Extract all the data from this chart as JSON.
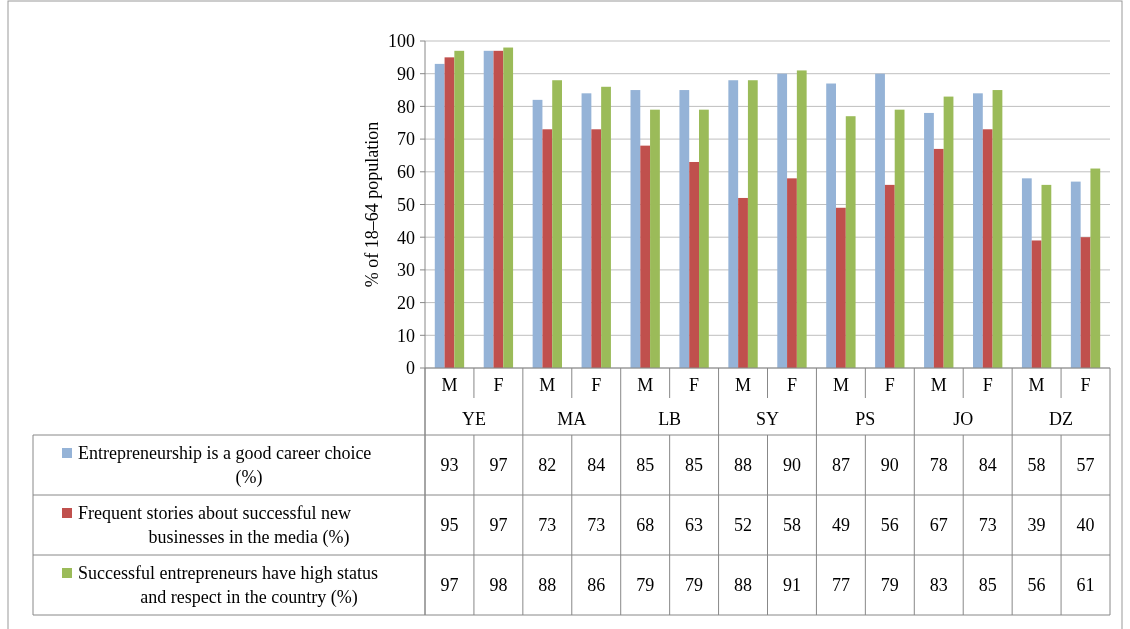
{
  "chart_data": {
    "type": "bar",
    "ylabel": "% of 18–64 population",
    "categories": [
      "M",
      "F",
      "M",
      "F",
      "M",
      "F",
      "M",
      "F",
      "M",
      "F",
      "M",
      "F",
      "M",
      "F"
    ],
    "annotations": [
      "YE",
      "MA",
      "LB",
      "SY",
      "PS",
      "JO",
      "DZ"
    ],
    "series": [
      {
        "name": "Entrepreneurship is a good career choice (%)",
        "color": "#95b3d7",
        "values": [
          93,
          97,
          82,
          84,
          85,
          85,
          88,
          90,
          87,
          90,
          78,
          84,
          58,
          57
        ]
      },
      {
        "name": "Frequent stories about successful new businesses in the media (%)",
        "color": "#c0504d",
        "values": [
          95,
          97,
          73,
          73,
          68,
          63,
          52,
          58,
          49,
          56,
          67,
          73,
          39,
          40
        ]
      },
      {
        "name": "Successful entrepreneurs have high status and respect in the country (%)",
        "color": "#9bbb59",
        "values": [
          97,
          98,
          88,
          86,
          79,
          79,
          88,
          91,
          77,
          79,
          83,
          85,
          56,
          61
        ]
      }
    ],
    "ylim": [
      0,
      100
    ],
    "yticks": [
      0,
      10,
      20,
      30,
      40,
      50,
      60,
      70,
      80,
      90,
      100
    ],
    "grid": true,
    "legend": "left",
    "data_labels": true
  }
}
